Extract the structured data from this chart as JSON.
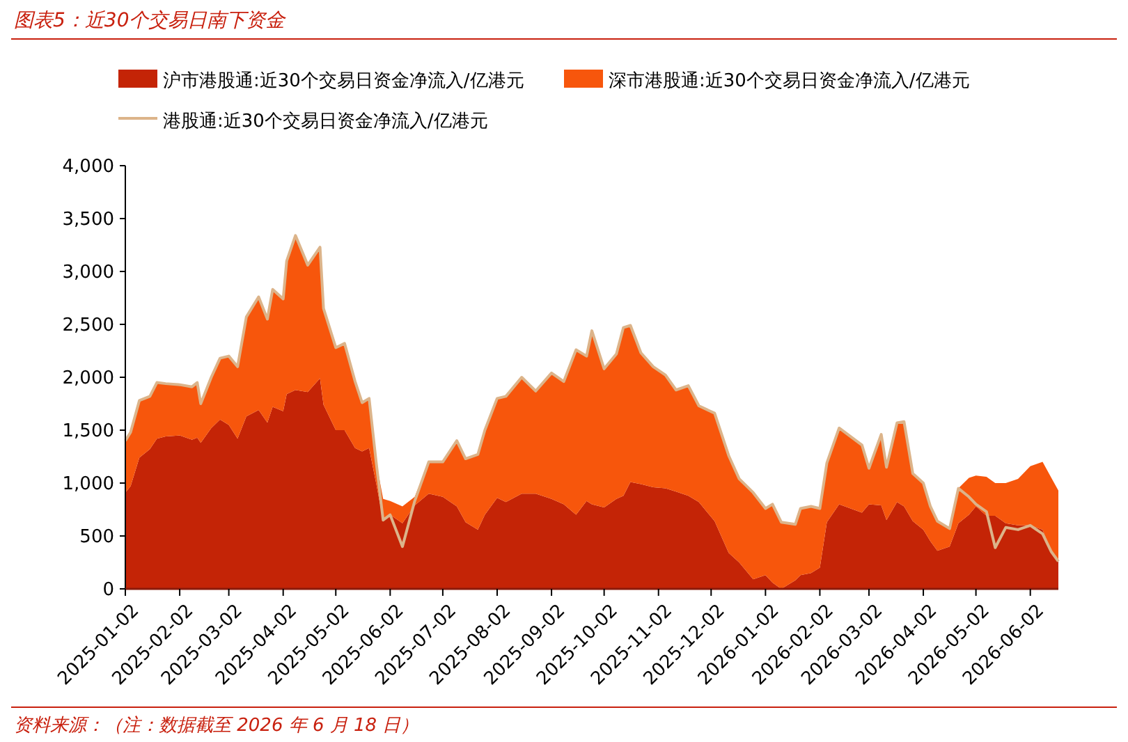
{
  "chart_data": {
    "type": "area",
    "stacked": true,
    "title": "图表5：近30个交易日南下资金",
    "annotations": [
      "资料来源：（注：数据截至 2026 年 6 月 18 日）"
    ],
    "x": [
      "2025-01-02",
      "2025-01-05",
      "2025-01-10",
      "2025-01-16",
      "2025-01-20",
      "2025-01-25",
      "2025-02-02",
      "2025-02-09",
      "2025-02-12",
      "2025-02-14",
      "2025-02-20",
      "2025-02-25",
      "2025-03-02",
      "2025-03-07",
      "2025-03-12",
      "2025-03-19",
      "2025-03-24",
      "2025-03-27",
      "2025-04-02",
      "2025-04-04",
      "2025-04-09",
      "2025-04-16",
      "2025-04-23",
      "2025-04-25",
      "2025-05-02",
      "2025-05-07",
      "2025-05-13",
      "2025-05-17",
      "2025-05-21",
      "2025-05-25",
      "2025-05-29",
      "2025-06-02",
      "2025-06-09",
      "2025-06-16",
      "2025-06-24",
      "2025-07-02",
      "2025-07-10",
      "2025-07-15",
      "2025-07-22",
      "2025-07-26",
      "2025-08-02",
      "2025-08-07",
      "2025-08-16",
      "2025-08-24",
      "2025-09-02",
      "2025-09-09",
      "2025-09-16",
      "2025-09-22",
      "2025-09-25",
      "2025-10-02",
      "2025-10-09",
      "2025-10-13",
      "2025-10-17",
      "2025-10-23",
      "2025-10-30",
      "2025-11-06",
      "2025-11-12",
      "2025-11-19",
      "2025-11-25",
      "2025-12-04",
      "2025-12-12",
      "2025-12-18",
      "2025-12-26",
      "2026-01-02",
      "2026-01-06",
      "2026-01-11",
      "2026-01-19",
      "2026-01-22",
      "2026-01-28",
      "2026-02-02",
      "2026-02-06",
      "2026-02-13",
      "2026-02-26",
      "2026-03-02",
      "2026-03-09",
      "2026-03-12",
      "2026-03-18",
      "2026-03-22",
      "2026-03-27",
      "2026-04-02",
      "2026-04-06",
      "2026-04-10",
      "2026-04-17",
      "2026-04-22",
      "2026-04-28",
      "2026-05-02",
      "2026-05-08",
      "2026-05-13",
      "2026-05-19",
      "2026-05-26",
      "2026-06-02",
      "2026-06-09",
      "2026-06-14",
      "2026-06-18"
    ],
    "series": [
      {
        "name": "沪市港股通:近30个交易日资金净流入/亿港元",
        "color": "#c42406",
        "values": [
          910,
          970,
          1240,
          1320,
          1420,
          1440,
          1450,
          1410,
          1430,
          1380,
          1520,
          1600,
          1550,
          1420,
          1630,
          1690,
          1570,
          1720,
          1680,
          1840,
          1880,
          1860,
          1990,
          1740,
          1500,
          1500,
          1330,
          1300,
          1330,
          1000,
          650,
          700,
          620,
          790,
          900,
          870,
          780,
          630,
          560,
          700,
          860,
          820,
          900,
          900,
          850,
          800,
          700,
          830,
          800,
          770,
          850,
          880,
          1010,
          990,
          960,
          950,
          920,
          880,
          820,
          640,
          340,
          250,
          90,
          130,
          60,
          0,
          80,
          130,
          150,
          200,
          630,
          800,
          720,
          800,
          790,
          650,
          820,
          780,
          640,
          560,
          450,
          360,
          400,
          620,
          700,
          780,
          690,
          690,
          620,
          600,
          600,
          560,
          350,
          260
        ]
      },
      {
        "name": "深市港股通:近30个交易日资金净流入/亿港元",
        "color": "#f7560c",
        "values": [
          490,
          510,
          540,
          500,
          530,
          500,
          480,
          500,
          520,
          370,
          480,
          580,
          650,
          680,
          940,
          1070,
          980,
          1110,
          1060,
          1260,
          1460,
          1200,
          1240,
          910,
          780,
          820,
          630,
          460,
          470,
          200,
          200,
          130,
          160,
          80,
          300,
          330,
          620,
          600,
          710,
          800,
          940,
          1000,
          1100,
          970,
          1190,
          1160,
          1560,
          1370,
          1640,
          1310,
          1370,
          1590,
          1480,
          1240,
          1140,
          1070,
          960,
          1040,
          910,
          1020,
          920,
          790,
          820,
          630,
          740,
          630,
          530,
          630,
          630,
          560,
          560,
          720,
          640,
          340,
          670,
          500,
          750,
          800,
          450,
          440,
          330,
          280,
          170,
          330,
          350,
          290,
          370,
          310,
          380,
          440,
          560,
          640,
          700,
          670
        ]
      },
      {
        "name": "港股通:近30个交易日资金净流入/亿港元",
        "type": "line",
        "color": "#dcb48a",
        "values": [
          1400,
          1480,
          1780,
          1820,
          1950,
          1940,
          1930,
          1910,
          1950,
          1750,
          2000,
          2180,
          2200,
          2100,
          2570,
          2760,
          2550,
          2830,
          2740,
          3100,
          3340,
          3060,
          3230,
          2650,
          2280,
          2320,
          1960,
          1760,
          1800,
          1200,
          650,
          700,
          400,
          830,
          1200,
          1200,
          1400,
          1230,
          1270,
          1500,
          1800,
          1820,
          2000,
          1870,
          2040,
          1960,
          2260,
          2200,
          2440,
          2080,
          2220,
          2470,
          2490,
          2230,
          2100,
          2020,
          1880,
          1920,
          1730,
          1660,
          1260,
          1040,
          910,
          760,
          800,
          630,
          610,
          760,
          780,
          760,
          1190,
          1520,
          1360,
          1140,
          1460,
          1150,
          1570,
          1580,
          1090,
          1000,
          780,
          640,
          570,
          950,
          870,
          800,
          730,
          390,
          580,
          560,
          600,
          520,
          350,
          260
        ]
      }
    ],
    "xlim": [
      "2025-01-02",
      "2026-06-18"
    ],
    "xticks": [
      "2025-01-02",
      "2025-02-02",
      "2025-03-02",
      "2025-04-02",
      "2025-05-02",
      "2025-06-02",
      "2025-07-02",
      "2025-08-02",
      "2025-09-02",
      "2025-10-02",
      "2025-11-02",
      "2025-12-02",
      "2026-01-02",
      "2026-02-02",
      "2026-03-02",
      "2026-04-02",
      "2026-05-02",
      "2026-06-02"
    ],
    "ylim": [
      0,
      4000
    ],
    "yticks": [
      0,
      {
        "value": 500,
        "label": "500"
      },
      {
        "value": 1000,
        "label": "1,000"
      },
      {
        "value": 1500,
        "label": "1,500"
      },
      {
        "value": 2000,
        "label": "2,000"
      },
      {
        "value": 2500,
        "label": "2,500"
      },
      {
        "value": 3000,
        "label": "3,000"
      },
      {
        "value": 3500,
        "label": "3,500"
      },
      {
        "value": 4000,
        "label": "4,000"
      }
    ],
    "legend": "top",
    "grid": false
  }
}
